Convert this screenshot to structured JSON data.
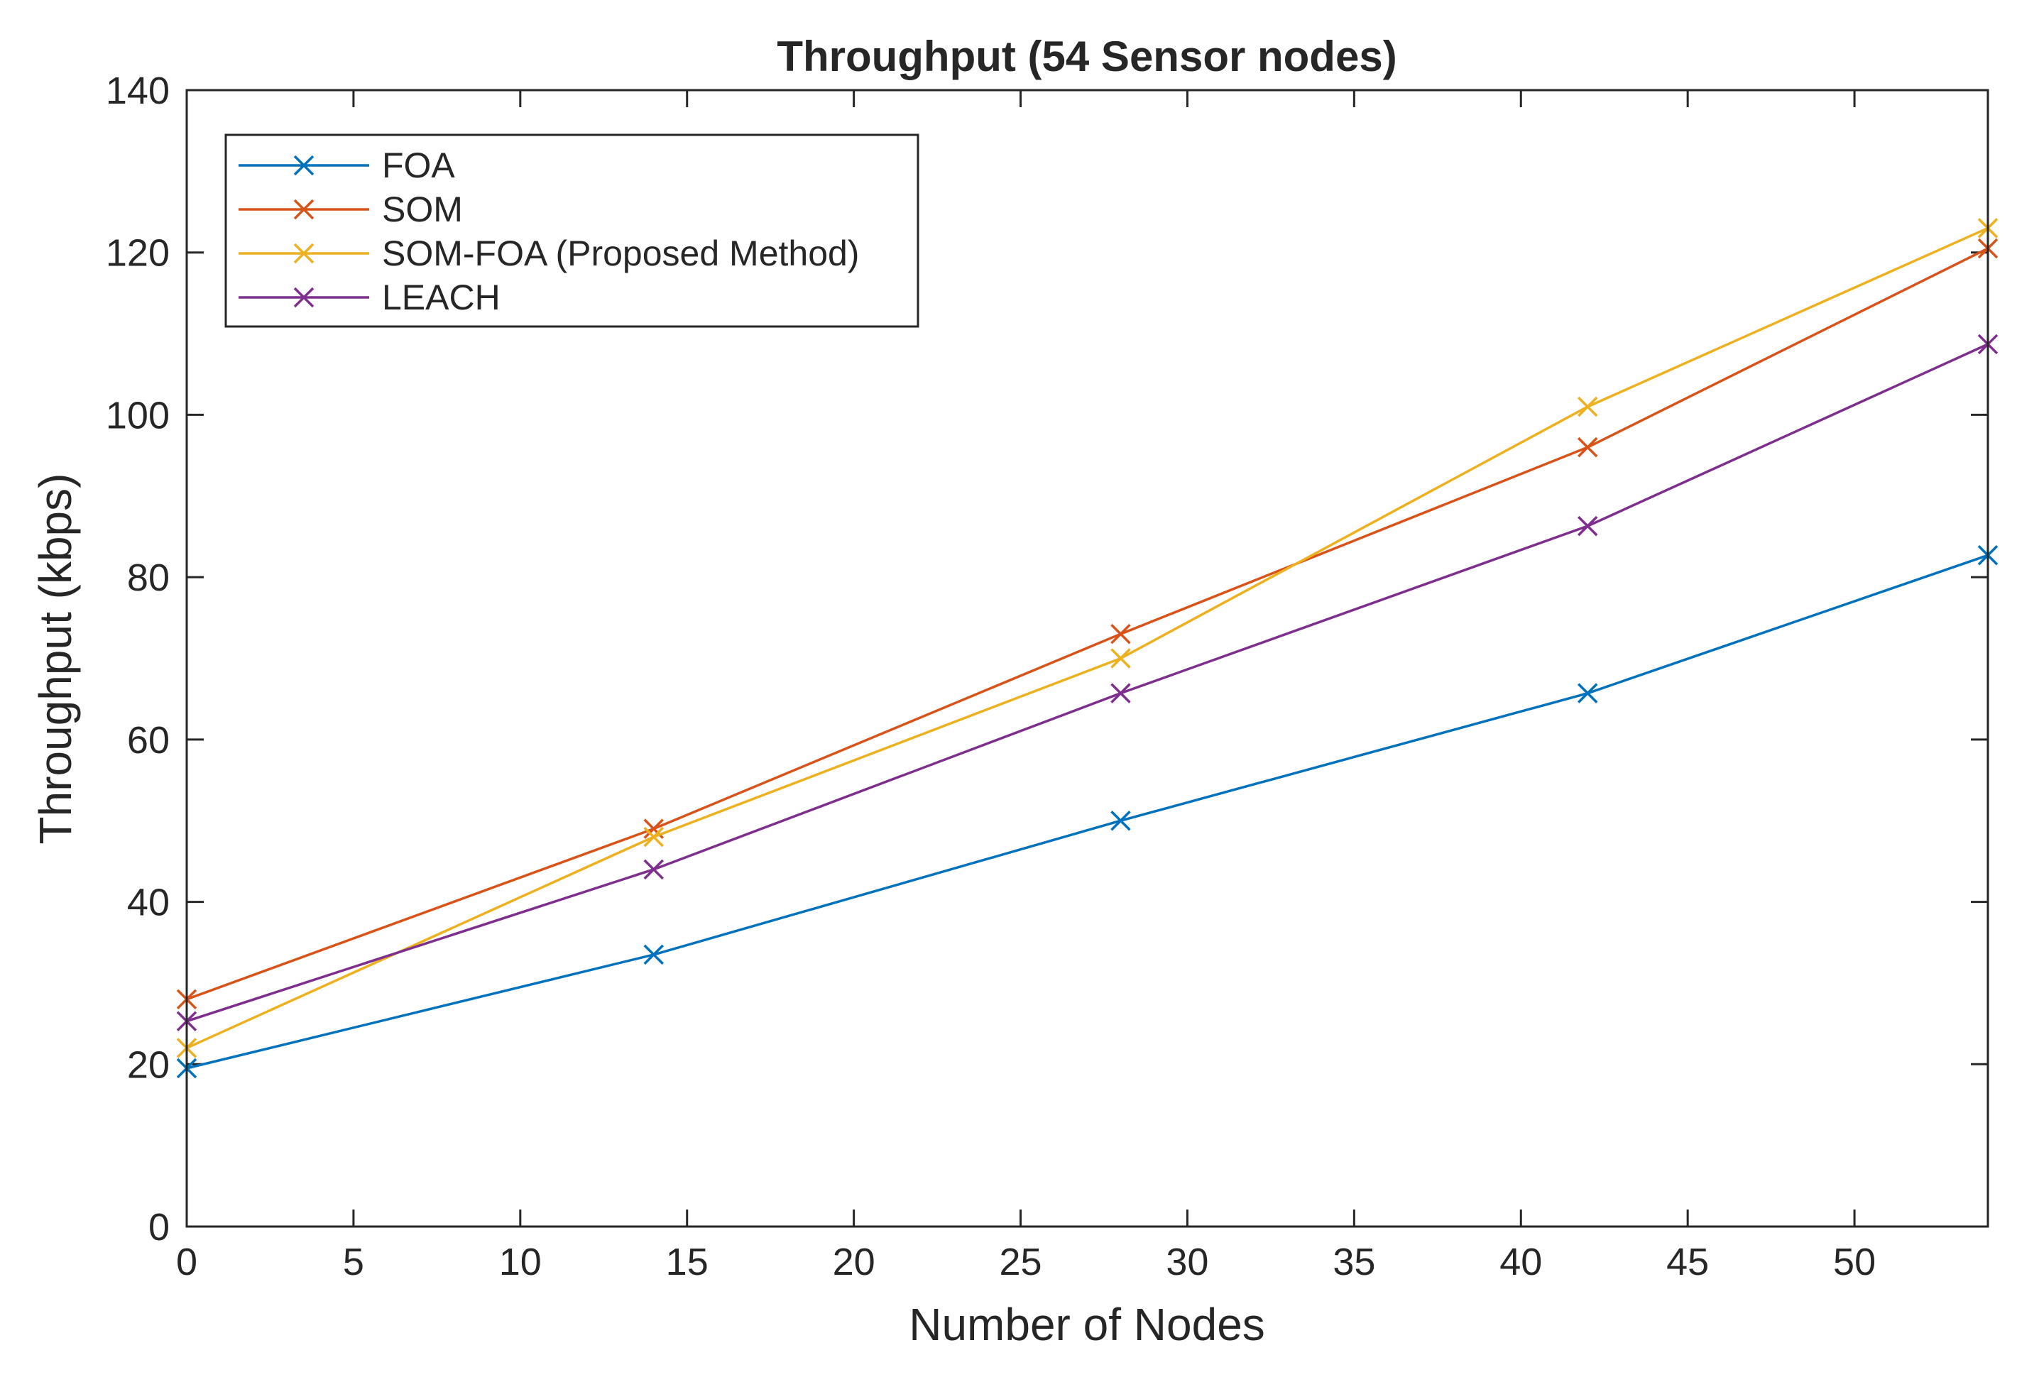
{
  "chart_data": {
    "type": "line",
    "title": "Throughput (54 Sensor nodes)",
    "xlabel": "Number of Nodes",
    "ylabel": "Throughput (kbps)",
    "xlim": [
      0,
      54
    ],
    "ylim": [
      0,
      140
    ],
    "xticks": [
      0,
      5,
      10,
      15,
      20,
      25,
      30,
      35,
      40,
      45,
      50
    ],
    "yticks": [
      0,
      20,
      40,
      60,
      80,
      100,
      120,
      140
    ],
    "grid": false,
    "legend_position": "top-left",
    "marker": "x",
    "x": [
      0,
      14,
      28,
      42,
      54
    ],
    "series": [
      {
        "name": "FOA",
        "color": "#0072BD",
        "values": [
          19.5,
          33.5,
          50,
          65.7,
          82.7
        ]
      },
      {
        "name": "SOM",
        "color": "#D95319",
        "values": [
          28,
          49,
          73,
          96,
          120.5
        ]
      },
      {
        "name": "SOM-FOA (Proposed Method)",
        "color": "#EDB120",
        "values": [
          22,
          48,
          70,
          101,
          123
        ]
      },
      {
        "name": "LEACH",
        "color": "#7E2F8E",
        "values": [
          25.3,
          44,
          65.7,
          86.3,
          108.7
        ]
      }
    ]
  }
}
